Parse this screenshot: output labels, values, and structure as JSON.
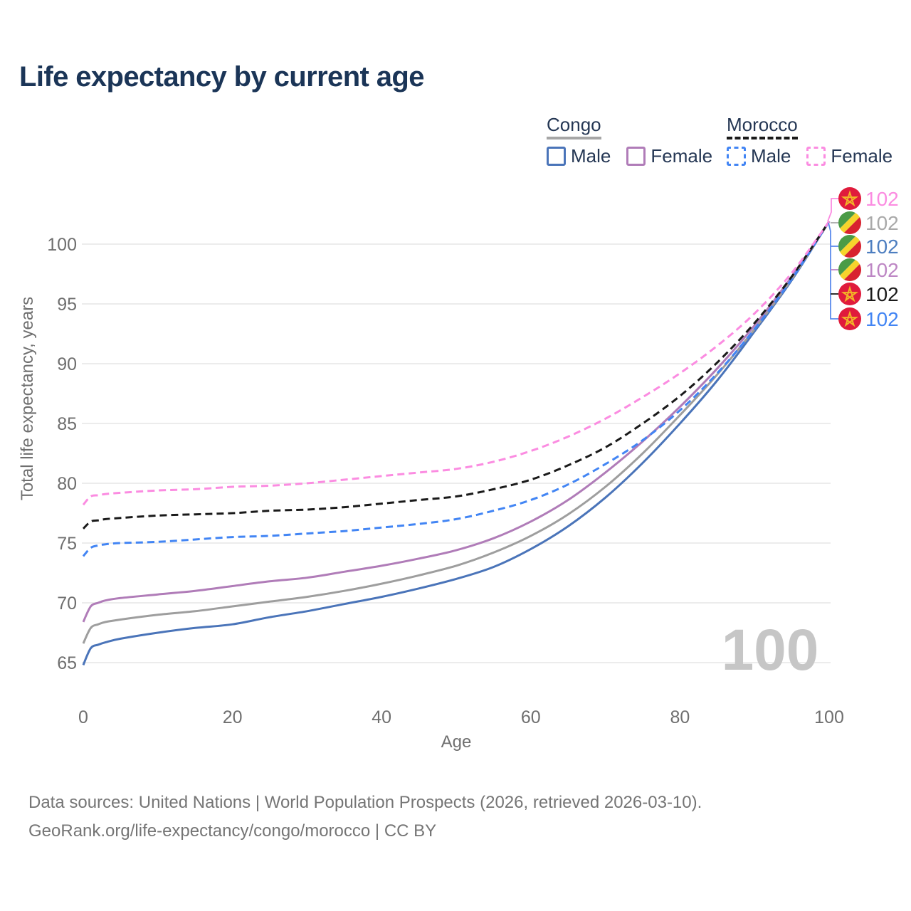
{
  "title": "Life expectancy by current age",
  "legend": {
    "groups": [
      {
        "name": "Congo",
        "line_style": "solid",
        "underline_color": "#a6a6a6",
        "items": [
          {
            "label": "Male",
            "swatch_color": "#4a74b9",
            "swatch_style": "solid"
          },
          {
            "label": "Female",
            "swatch_color": "#b07cb8",
            "swatch_style": "solid"
          }
        ]
      },
      {
        "name": "Morocco",
        "line_style": "dashed",
        "underline_color": "#1a1a1a",
        "items": [
          {
            "label": "Male",
            "swatch_color": "#4285f4",
            "swatch_style": "dashed"
          },
          {
            "label": "Female",
            "swatch_color": "#fb8ce1",
            "swatch_style": "dashed"
          }
        ]
      }
    ]
  },
  "age_counter": "100",
  "footer": {
    "line1": "Data sources: United Nations | World Population Prospects (2026, retrieved 2026-03-10).",
    "line2": "GeoRank.org/life-expectancy/congo/morocco | CC BY"
  },
  "chart_data": {
    "type": "line",
    "title": "Life expectancy by current age",
    "xlabel": "Age",
    "ylabel": "Total life expectancy, years",
    "xlim": [
      0,
      100
    ],
    "ylim": [
      63,
      103
    ],
    "xticks": [
      0,
      20,
      40,
      60,
      80,
      100
    ],
    "yticks": [
      65,
      70,
      75,
      80,
      85,
      90,
      95,
      100
    ],
    "grid": "horizontal",
    "legend_position": "top-right",
    "x": [
      0,
      1,
      2,
      3,
      5,
      10,
      15,
      20,
      25,
      30,
      35,
      40,
      45,
      50,
      55,
      60,
      65,
      70,
      75,
      80,
      85,
      90,
      95,
      100
    ],
    "series": [
      {
        "name": "Congo Male",
        "country": "Congo",
        "sex": "Male",
        "color": "#4a74b9",
        "dash": "solid",
        "flag": "congo",
        "end_value": 102,
        "end_label": "102",
        "label_row": 2,
        "label_color": "#4d7ec0",
        "values": [
          64.8,
          66.2,
          66.5,
          66.7,
          67.0,
          67.5,
          67.9,
          68.2,
          68.8,
          69.3,
          69.9,
          70.5,
          71.2,
          72.0,
          73.0,
          74.5,
          76.4,
          78.8,
          81.7,
          85.0,
          88.6,
          92.7,
          97.0,
          101.9
        ]
      },
      {
        "name": "Congo Both sexes",
        "country": "Congo",
        "sex": "Both",
        "color": "#9e9e9e",
        "dash": "solid",
        "flag": "congo",
        "end_value": 102,
        "end_label": "102",
        "label_row": 1,
        "label_color": "#a9a9a9",
        "values": [
          66.6,
          67.9,
          68.2,
          68.4,
          68.6,
          69.0,
          69.3,
          69.7,
          70.1,
          70.5,
          71.0,
          71.6,
          72.3,
          73.1,
          74.2,
          75.6,
          77.4,
          79.7,
          82.5,
          85.7,
          89.1,
          92.9,
          97.1,
          101.9
        ]
      },
      {
        "name": "Congo Female",
        "country": "Congo",
        "sex": "Female",
        "color": "#b07cb8",
        "dash": "solid",
        "flag": "congo",
        "end_value": 102,
        "end_label": "102",
        "label_row": 3,
        "label_color": "#bd86c4",
        "values": [
          68.4,
          69.7,
          70.0,
          70.2,
          70.4,
          70.7,
          71.0,
          71.4,
          71.8,
          72.1,
          72.6,
          73.1,
          73.7,
          74.4,
          75.4,
          76.8,
          78.6,
          80.9,
          83.5,
          86.4,
          89.6,
          93.2,
          97.3,
          101.9
        ]
      },
      {
        "name": "Morocco Male",
        "country": "Morocco",
        "sex": "Male",
        "color": "#4285f4",
        "dash": "dashed",
        "flag": "morocco",
        "end_value": 102,
        "end_label": "102",
        "label_row": 5,
        "label_color": "#4285f4",
        "values": [
          73.9,
          74.6,
          74.8,
          74.9,
          75.0,
          75.1,
          75.3,
          75.5,
          75.6,
          75.8,
          76.0,
          76.3,
          76.6,
          77.0,
          77.7,
          78.6,
          79.9,
          81.6,
          83.6,
          86.1,
          89.2,
          92.9,
          97.1,
          101.9
        ]
      },
      {
        "name": "Morocco Both sexes",
        "country": "Morocco",
        "sex": "Both",
        "color": "#1a1a1a",
        "dash": "dashed",
        "flag": "morocco",
        "end_value": 102,
        "end_label": "102",
        "label_row": 4,
        "label_color": "#1a1a1a",
        "values": [
          76.2,
          76.8,
          76.9,
          77.0,
          77.1,
          77.3,
          77.4,
          77.5,
          77.7,
          77.8,
          78.0,
          78.3,
          78.6,
          78.9,
          79.5,
          80.3,
          81.5,
          83.0,
          85.0,
          87.3,
          90.1,
          93.4,
          97.3,
          101.9
        ]
      },
      {
        "name": "Morocco Female",
        "country": "Morocco",
        "sex": "Female",
        "color": "#fb8ce1",
        "dash": "dashed",
        "flag": "morocco",
        "end_value": 102,
        "end_label": "102",
        "label_row": 0,
        "label_color": "#fb8ce1",
        "values": [
          78.2,
          78.9,
          79.0,
          79.1,
          79.2,
          79.4,
          79.5,
          79.7,
          79.8,
          80.0,
          80.3,
          80.6,
          80.9,
          81.2,
          81.8,
          82.7,
          83.9,
          85.4,
          87.2,
          89.2,
          91.5,
          94.2,
          97.6,
          101.9
        ]
      }
    ],
    "flag_colors": {
      "congo": {
        "green": "#4a9b46",
        "yellow": "#f6d42c",
        "red": "#d8222f"
      },
      "morocco": {
        "red": "#e01b3c",
        "star": "#f2b427"
      }
    },
    "leader_colors": {
      "pink": "#fb8ce1",
      "blue": "#5b8bec"
    }
  }
}
